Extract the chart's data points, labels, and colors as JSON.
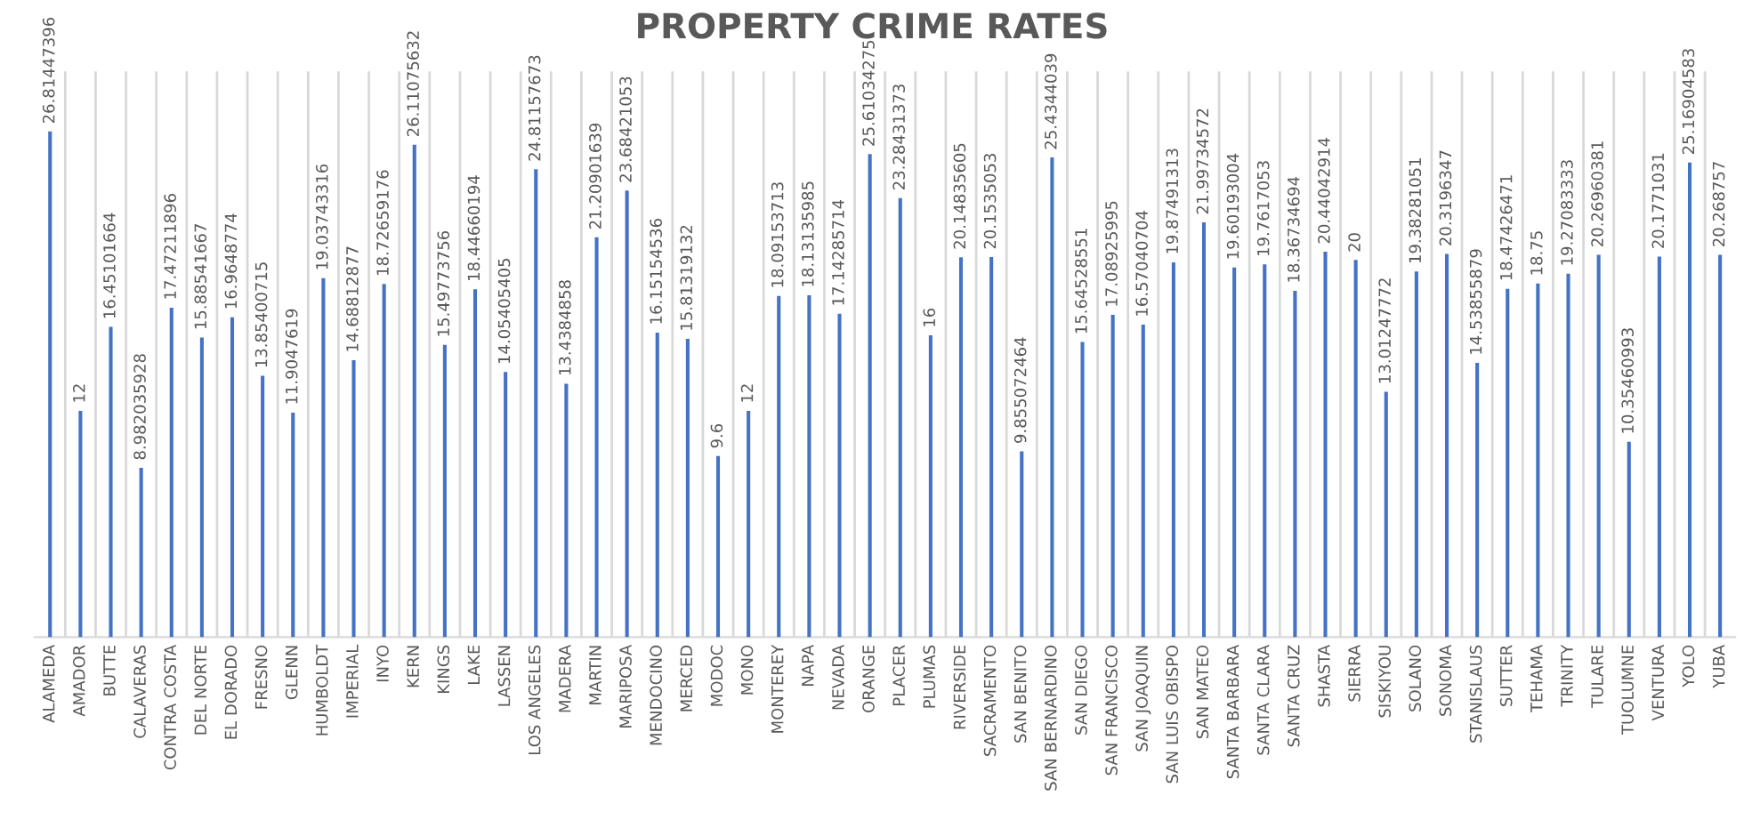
{
  "chart_data": {
    "type": "bar",
    "title": "PROPERTY CRIME RATES",
    "categories": [
      "ALAMEDA",
      "AMADOR",
      "BUTTE",
      "CALAVERAS",
      "CONTRA COSTA",
      "DEL NORTE",
      "EL DORADO",
      "FRESNO",
      "GLENN",
      "HUMBOLDT",
      "IMPERIAL",
      "INYO",
      "KERN",
      "KINGS",
      "LAKE",
      "LASSEN",
      "LOS ANGELES",
      "MADERA",
      "MARTIN",
      "MARIPOSA",
      "MENDOCINO",
      "MERCED",
      "MODOC",
      "MONO",
      "MONTEREY",
      "NAPA",
      "NEVADA",
      "ORANGE",
      "PLACER",
      "PLUMAS",
      "RIVERSIDE",
      "SACRAMENTO",
      "SAN BENITO",
      "SAN BERNARDINO",
      "SAN DIEGO",
      "SAN FRANCISCO",
      "SAN JOAQUIN",
      "SAN LUIS OBISPO",
      "SAN MATEO",
      "SANTA BARBARA",
      "SANTA CLARA",
      "SANTA CRUZ",
      "SHASTA",
      "SIERRA",
      "SISKIYOU",
      "SOLANO",
      "SONOMA",
      "STANISLAUS",
      "SUTTER",
      "TEHAMA",
      "TRINITY",
      "TULARE",
      "TUOLUMNE",
      "VENTURA",
      "YOLO",
      "YUBA"
    ],
    "values": [
      26.81447396,
      12,
      16.45101664,
      8.982035928,
      17.47211896,
      15.88541667,
      16.9648774,
      13.85400715,
      11.9047619,
      19.03743316,
      14.68812877,
      18.72659176,
      26.11075632,
      15.49773756,
      18.44660194,
      14.05405405,
      24.81157673,
      13.4384858,
      21.20901639,
      23.68421053,
      16.15154536,
      15.81319132,
      9.6,
      12,
      18.09153713,
      18.13135985,
      17.14285714,
      25.61034275,
      23.28431373,
      16,
      20.14835605,
      20.1535053,
      9.855072464,
      25.4344039,
      15.64528551,
      17.08925995,
      16.57040704,
      19.87491313,
      21.99734572,
      19.60193004,
      19.7617053,
      18.36734694,
      20.44042914,
      20,
      13.01247772,
      19.38281051,
      20.3196347,
      14.53855879,
      18.47426471,
      18.75,
      19.27083333,
      20.26960381,
      10.35460993,
      20.1771031,
      25.16904583,
      20.268757
    ],
    "color": "#4472c4",
    "ylim": [
      0,
      30
    ],
    "grid": "x",
    "data_labels": true,
    "tick_labels": "x"
  }
}
